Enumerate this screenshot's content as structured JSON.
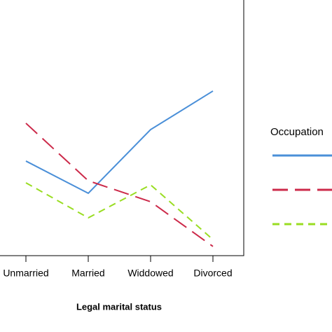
{
  "chart_data": {
    "type": "line",
    "x_label": "Legal marital status",
    "legend_title": "Occupation",
    "categories": [
      "Unmarried",
      "Married",
      "Widdowed",
      "Divorced"
    ],
    "series": [
      {
        "color": "#4a8fd8",
        "dash": "none",
        "values": [
          37,
          24.4,
          49.3,
          64.4
        ]
      },
      {
        "color": "#cc2a4a",
        "dash": "22,10",
        "values": [
          51.8,
          29.3,
          21.1,
          3.6
        ]
      },
      {
        "color": "#99dd22",
        "dash": "10,7",
        "values": [
          28.5,
          14.8,
          27.7,
          6.3
        ]
      }
    ],
    "ylim": [
      0,
      100
    ]
  }
}
